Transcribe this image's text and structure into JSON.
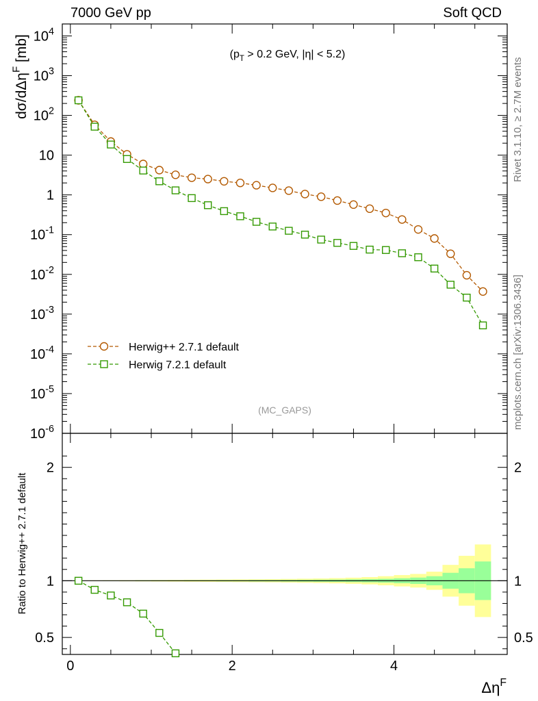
{
  "header": {
    "left": "7000 GeV pp",
    "right": "Soft QCD"
  },
  "side_labels": {
    "rivet": "Rivet 3.1.10, ≥ 2.7M events",
    "mcplots": "mcplots.cern.ch [arXiv:1306.3436]"
  },
  "colors": {
    "herwigpp": "#b35900",
    "herwig7": "#339900",
    "band_outer": "#ffff99",
    "band_inner": "#99ff99"
  },
  "chart_data": [
    {
      "type": "line",
      "annotation": "(p_T > 0.2 GeV, |η| < 5.2)",
      "watermark": "(MC_GAPS)",
      "ylabel": "dσ/dΔη^F [mb]",
      "xlabel": "Δη^F",
      "yscale": "log",
      "xlim": [
        -0.1,
        5.4
      ],
      "ylim": [
        1e-06,
        20000
      ],
      "y_tick_labels": [
        "10^-6",
        "10^-5",
        "10^-4",
        "10^-3",
        "10^-2",
        "10^-1",
        "1",
        "10",
        "10^2",
        "10^3",
        "10^4"
      ],
      "legend_position": "lower-left",
      "x": [
        0.1,
        0.3,
        0.5,
        0.7,
        0.9,
        1.1,
        1.3,
        1.5,
        1.7,
        1.9,
        2.1,
        2.3,
        2.5,
        2.7,
        2.9,
        3.1,
        3.3,
        3.5,
        3.7,
        3.9,
        4.1,
        4.3,
        4.5,
        4.7,
        4.9,
        5.1
      ],
      "series": [
        {
          "name": "Herwig++ 2.7.1 default",
          "marker": "circle",
          "values": [
            240,
            58,
            22,
            10.5,
            6.0,
            4.2,
            3.2,
            2.7,
            2.5,
            2.2,
            2.0,
            1.75,
            1.5,
            1.28,
            1.05,
            0.9,
            0.72,
            0.57,
            0.45,
            0.35,
            0.24,
            0.135,
            0.08,
            0.033,
            0.0095,
            0.0037
          ]
        },
        {
          "name": "Herwig 7.2.1 default",
          "marker": "square",
          "values": [
            240,
            52,
            18.5,
            8.0,
            4.1,
            2.2,
            1.3,
            0.83,
            0.55,
            0.39,
            0.29,
            0.21,
            0.16,
            0.125,
            0.1,
            0.075,
            0.062,
            0.052,
            0.042,
            0.041,
            0.034,
            0.027,
            0.014,
            0.0055,
            0.0026,
            0.00052
          ]
        }
      ]
    },
    {
      "type": "line",
      "ylabel": "Ratio to Herwig++ 2.7.1 default",
      "xlabel": "Δη^F",
      "xlim": [
        -0.1,
        5.4
      ],
      "ylim": [
        0.35,
        2.3
      ],
      "y_tick_labels": [
        "0.5",
        "1",
        "2"
      ],
      "x_tick_labels": [
        "0",
        "2",
        "4"
      ],
      "x": [
        0.1,
        0.3,
        0.5,
        0.7,
        0.9,
        1.1,
        1.3
      ],
      "series": [
        {
          "name": "Herwig 7.2.1 default",
          "marker": "square",
          "values": [
            1.0,
            0.92,
            0.87,
            0.81,
            0.71,
            0.54,
            0.36
          ]
        }
      ],
      "reference_band": {
        "x": [
          0.1,
          0.3,
          0.5,
          0.7,
          0.9,
          1.1,
          1.3,
          1.5,
          1.7,
          1.9,
          2.1,
          2.3,
          2.5,
          2.7,
          2.9,
          3.1,
          3.3,
          3.5,
          3.7,
          3.9,
          4.1,
          4.3,
          4.5,
          4.7,
          4.9,
          5.1
        ],
        "outer_half_width": [
          0.002,
          0.003,
          0.004,
          0.005,
          0.006,
          0.007,
          0.008,
          0.009,
          0.01,
          0.011,
          0.012,
          0.013,
          0.014,
          0.016,
          0.018,
          0.02,
          0.023,
          0.027,
          0.032,
          0.04,
          0.05,
          0.06,
          0.08,
          0.14,
          0.22,
          0.32
        ],
        "inner_half_width": [
          0.001,
          0.001,
          0.002,
          0.002,
          0.003,
          0.003,
          0.003,
          0.004,
          0.004,
          0.005,
          0.005,
          0.006,
          0.006,
          0.007,
          0.008,
          0.009,
          0.01,
          0.012,
          0.014,
          0.017,
          0.022,
          0.028,
          0.04,
          0.07,
          0.11,
          0.17
        ]
      }
    }
  ]
}
